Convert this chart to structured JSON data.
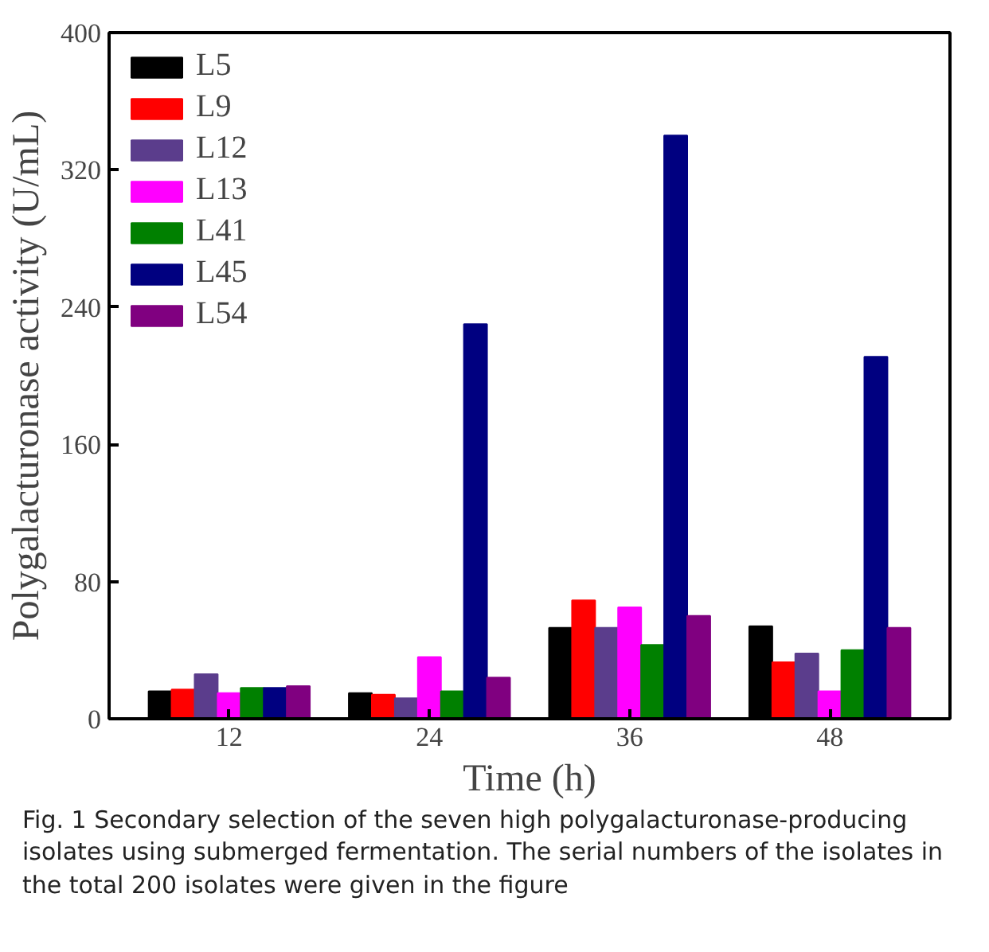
{
  "chart_data": {
    "type": "bar",
    "xlabel": "Time (h)",
    "ylabel": "Polygalacturonase activity (U/mL)",
    "categories": [
      "12",
      "24",
      "36",
      "48"
    ],
    "series": [
      {
        "name": "L5",
        "color": "#000000",
        "values": [
          16,
          15,
          53,
          54
        ]
      },
      {
        "name": "L9",
        "color": "#ff0000",
        "values": [
          17,
          14,
          69,
          33
        ]
      },
      {
        "name": "L12",
        "color": "#5b3d8c",
        "values": [
          26,
          12,
          53,
          38
        ]
      },
      {
        "name": "L13",
        "color": "#ff00ff",
        "values": [
          15,
          36,
          65,
          16
        ]
      },
      {
        "name": "L41",
        "color": "#008000",
        "values": [
          18,
          16,
          43,
          40
        ]
      },
      {
        "name": "L45",
        "color": "#000080",
        "values": [
          18,
          230,
          340,
          211
        ]
      },
      {
        "name": "L54",
        "color": "#800080",
        "values": [
          19,
          24,
          60,
          53
        ]
      }
    ],
    "ylim": [
      0,
      400
    ],
    "yticks": [
      0,
      80,
      160,
      240,
      320,
      400
    ],
    "grid": false,
    "legend": "top left",
    "annotations": [
      "Fig. 1 Secondary selection of the seven high polygalacturonase-producing isolates using submerged fermentation. The serial numbers of the isolates in the total 200 isolates were given in the figure"
    ]
  }
}
